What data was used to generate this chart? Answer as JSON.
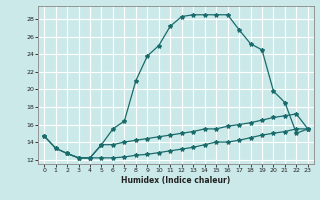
{
  "title": "",
  "xlabel": "Humidex (Indice chaleur)",
  "ylabel": "",
  "bg_color": "#cce9e9",
  "grid_color": "#ffffff",
  "line_color": "#1a6b6b",
  "xlim": [
    -0.5,
    23.5
  ],
  "ylim": [
    11.5,
    29.5
  ],
  "xticks": [
    0,
    1,
    2,
    3,
    4,
    5,
    6,
    7,
    8,
    9,
    10,
    11,
    12,
    13,
    14,
    15,
    16,
    17,
    18,
    19,
    20,
    21,
    22,
    23
  ],
  "yticks": [
    12,
    14,
    16,
    18,
    20,
    22,
    24,
    26,
    28
  ],
  "line1_x": [
    0,
    1,
    2,
    3,
    4,
    5,
    6,
    7,
    8,
    9,
    10,
    11,
    12,
    13,
    14,
    15,
    16,
    17,
    18,
    19,
    20,
    21,
    22,
    23
  ],
  "line1_y": [
    14.7,
    13.3,
    12.7,
    12.2,
    12.2,
    13.7,
    15.5,
    16.4,
    21.0,
    23.8,
    25.0,
    27.2,
    28.3,
    28.5,
    28.5,
    28.5,
    28.5,
    26.8,
    25.2,
    24.5,
    19.8,
    18.5,
    15.0,
    15.5
  ],
  "line2_x": [
    0,
    1,
    2,
    3,
    4,
    5,
    6,
    7,
    8,
    9,
    10,
    11,
    12,
    13,
    14,
    15,
    16,
    17,
    18,
    19,
    20,
    21,
    22,
    23
  ],
  "line2_y": [
    14.7,
    13.3,
    12.7,
    12.2,
    12.2,
    13.7,
    13.7,
    14.0,
    14.2,
    14.4,
    14.6,
    14.8,
    15.0,
    15.2,
    15.5,
    15.5,
    15.8,
    16.0,
    16.2,
    16.5,
    16.8,
    17.0,
    17.2,
    15.5
  ],
  "line3_x": [
    2,
    3,
    4,
    5,
    6,
    7,
    8,
    9,
    10,
    11,
    12,
    13,
    14,
    15,
    16,
    17,
    18,
    19,
    20,
    21,
    22,
    23
  ],
  "line3_y": [
    12.7,
    12.2,
    12.2,
    12.2,
    12.2,
    12.3,
    12.5,
    12.6,
    12.8,
    13.0,
    13.2,
    13.4,
    13.7,
    14.0,
    14.0,
    14.2,
    14.5,
    14.8,
    15.0,
    15.2,
    15.5,
    15.5
  ]
}
